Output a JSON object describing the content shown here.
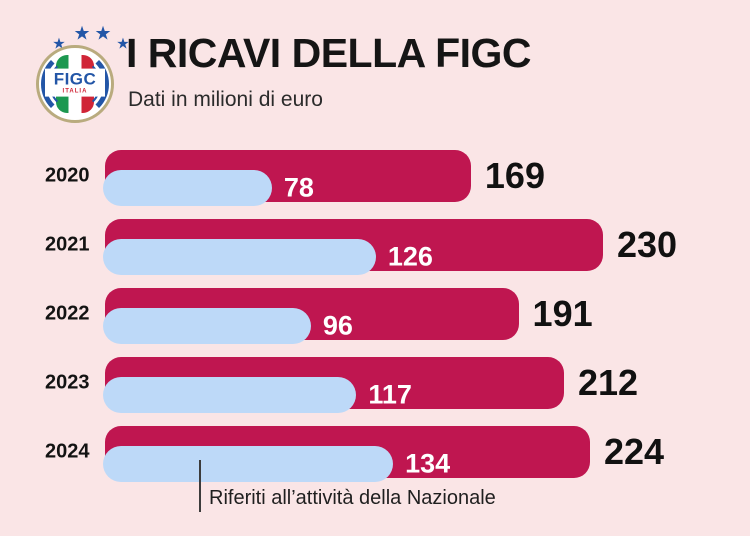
{
  "page": {
    "background_color": "#fae5e6"
  },
  "logo": {
    "text": "FIGC",
    "country": "ITALIA",
    "star_glyph": "★",
    "star_color": "#2356a7",
    "ring_color": "#b9ab7e",
    "flag_green": "#1c9850",
    "flag_red": "#d02537"
  },
  "header": {
    "title": "I RICAVI DELLA FIGC",
    "subtitle": "Dati in milioni di euro"
  },
  "chart_data": {
    "type": "bar",
    "orientation": "horizontal",
    "title": "I RICAVI DELLA FIGC",
    "subtitle": "Dati in milioni di euro",
    "unit": "milioni di euro",
    "categories": [
      "2020",
      "2021",
      "2022",
      "2023",
      "2024"
    ],
    "series": [
      {
        "name": "Ricavi totali",
        "color": "#bf1650",
        "values": [
          169,
          230,
          191,
          212,
          224
        ]
      },
      {
        "name": "Riferiti all’attività della Nazionale",
        "color": "#bdd9f8",
        "values": [
          78,
          126,
          96,
          117,
          134
        ]
      }
    ],
    "xlim": [
      0,
      230
    ],
    "grid": false,
    "legend_position": "none",
    "value_labels": true,
    "annotation": {
      "text": "Riferiti all’attività della Nazionale",
      "target_series": 1,
      "target_category": "2024"
    }
  }
}
